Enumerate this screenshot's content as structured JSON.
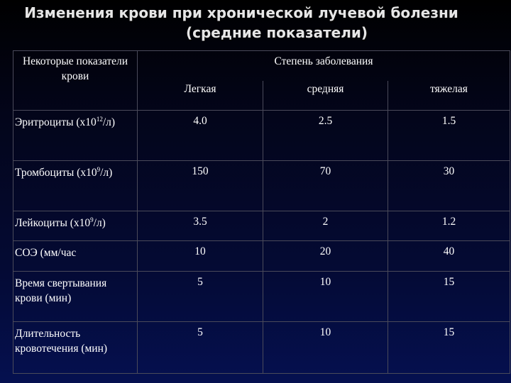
{
  "title": {
    "line1": "Изменения крови при хронической лучевой болезни",
    "line2": "(средние показатели)"
  },
  "table": {
    "header_left": "Некоторые показатели крови",
    "header_group": "Степень заболевания",
    "columns": [
      "Легкая",
      "средняя",
      "тяжелая"
    ],
    "rows": [
      {
        "label_prefix": "Эритроциты (х10",
        "label_sup": "12",
        "label_suffix": "/л)",
        "values": [
          "4.0",
          "2.5",
          "1.5"
        ]
      },
      {
        "label_prefix": "Тромбоциты (х10",
        "label_sup": "9",
        "label_suffix": "/л)",
        "values": [
          "150",
          "70",
          "30"
        ]
      },
      {
        "label_prefix": "Лейкоциты (х10",
        "label_sup": "9",
        "label_suffix": "/л)",
        "values": [
          "3.5",
          "2",
          "1.2"
        ]
      },
      {
        "label": "СОЭ (мм/час",
        "values": [
          "10",
          "20",
          "40"
        ]
      },
      {
        "label": "Время свертывания крови (мин)",
        "values": [
          "5",
          "10",
          "15"
        ]
      },
      {
        "label": "Длительность кровотечения (мин)",
        "values": [
          "5",
          "10",
          "15"
        ]
      }
    ]
  }
}
